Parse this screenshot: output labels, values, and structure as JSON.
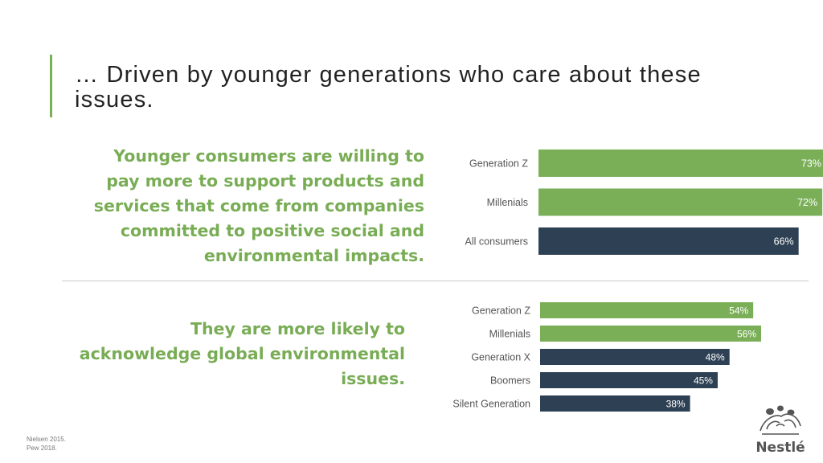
{
  "title": "… Driven by younger generations who care about these issues.",
  "headline_1": "Younger consumers are willing to pay more to support products and services that come from companies committed to positive social and environmental impacts.",
  "headline_2": "They are more likely to acknowledge global environmental issues.",
  "sources": [
    "Nielsen 2015.",
    "Pew 2018."
  ],
  "logo_text": "Nestlé",
  "colors": {
    "green": "#7aaf58",
    "navy": "#2e4053",
    "label_text": "#555555"
  },
  "chart_data": [
    {
      "type": "bar",
      "orientation": "horizontal",
      "categories": [
        "Generation Z",
        "Millenials",
        "All consumers"
      ],
      "values": [
        73,
        72,
        66
      ],
      "value_labels": [
        "73%",
        "72%",
        "66%"
      ],
      "bar_colors": [
        "green",
        "green",
        "navy"
      ],
      "xlim": [
        0,
        73
      ]
    },
    {
      "type": "bar",
      "orientation": "horizontal",
      "categories": [
        "Generation Z",
        "Millenials",
        "Generation X",
        "Boomers",
        "Silent Generation"
      ],
      "values": [
        54,
        56,
        48,
        45,
        38
      ],
      "value_labels": [
        "54%",
        "56%",
        "48%",
        "45%",
        "38%"
      ],
      "bar_colors": [
        "green",
        "green",
        "navy",
        "navy",
        "navy"
      ],
      "xlim": [
        0,
        56
      ]
    }
  ]
}
